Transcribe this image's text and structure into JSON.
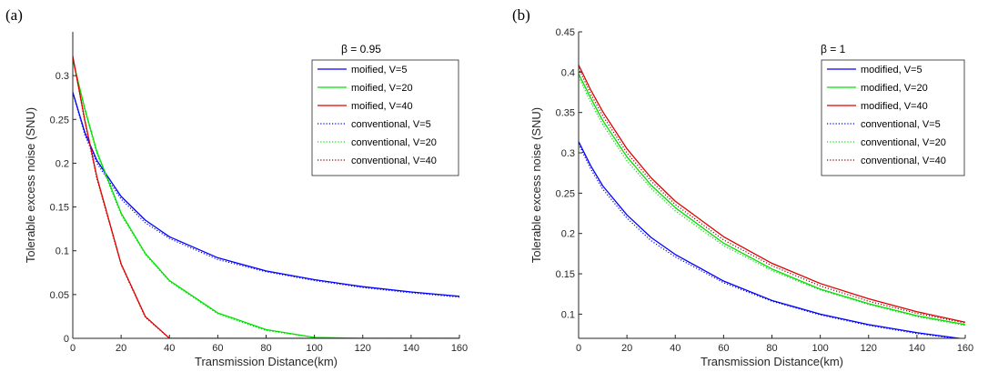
{
  "chart_data": [
    {
      "type": "line",
      "panel_label": "(a)",
      "annotation": "β = 0.95",
      "xlabel": "Transmission Distance(km)",
      "ylabel": "Tolerable excess noise (SNU)",
      "xlim": [
        0,
        160
      ],
      "ylim": [
        0,
        0.35
      ],
      "xticks": [
        0,
        20,
        40,
        60,
        80,
        100,
        120,
        140,
        160
      ],
      "yticks": [
        0,
        0.05,
        0.1,
        0.15,
        0.2,
        0.25,
        0.3
      ],
      "x": [
        0,
        5,
        10,
        20,
        30,
        40,
        60,
        80,
        100,
        120,
        140,
        160
      ],
      "legend_position": "top-right",
      "series": [
        {
          "name": "moified, V=5",
          "color": "#0000ff",
          "style": "solid",
          "values": [
            0.281,
            0.235,
            0.203,
            0.162,
            0.135,
            0.116,
            0.092,
            0.077,
            0.067,
            0.059,
            0.053,
            0.048
          ]
        },
        {
          "name": "moified, V=20",
          "color": "#00e000",
          "style": "solid",
          "values": [
            0.318,
            0.262,
            0.213,
            0.143,
            0.097,
            0.066,
            0.029,
            0.01,
            0.001,
            0,
            0,
            0
          ]
        },
        {
          "name": "moified, V=40",
          "color": "#e00000",
          "style": "solid",
          "values": [
            0.322,
            0.249,
            0.184,
            0.085,
            0.025,
            0,
            0,
            0,
            0,
            0,
            0,
            0
          ]
        },
        {
          "name": "conventional, V=5",
          "color": "#0000ff",
          "style": "dotted",
          "values": [
            0.281,
            0.232,
            0.2,
            0.159,
            0.132,
            0.114,
            0.09,
            0.076,
            0.066,
            0.058,
            0.052,
            0.047
          ]
        },
        {
          "name": "conventional, V=20",
          "color": "#00e000",
          "style": "dotted",
          "values": [
            0.318,
            0.26,
            0.211,
            0.141,
            0.096,
            0.065,
            0.028,
            0.009,
            0.001,
            0,
            0,
            0
          ]
        },
        {
          "name": "conventional, V=40",
          "color": "#8b0000",
          "style": "dotted",
          "values": [
            0.322,
            0.247,
            0.182,
            0.084,
            0.024,
            0,
            0,
            0,
            0,
            0,
            0,
            0
          ]
        }
      ]
    },
    {
      "type": "line",
      "panel_label": "(b)",
      "annotation": "β = 1",
      "xlabel": "Transmission Distance(km)",
      "ylabel": "Tolerable excess noise (SNU)",
      "xlim": [
        0,
        160
      ],
      "ylim": [
        0.07,
        0.45
      ],
      "xticks": [
        0,
        20,
        40,
        60,
        80,
        100,
        120,
        140,
        160
      ],
      "yticks": [
        0.1,
        0.15,
        0.2,
        0.25,
        0.3,
        0.35,
        0.4,
        0.45
      ],
      "x": [
        0,
        5,
        10,
        20,
        30,
        40,
        60,
        80,
        100,
        120,
        140,
        160
      ],
      "legend_position": "top-right",
      "series": [
        {
          "name": "modified, V=5",
          "color": "#0000ff",
          "style": "solid",
          "values": [
            0.314,
            0.284,
            0.259,
            0.223,
            0.195,
            0.174,
            0.141,
            0.117,
            0.1,
            0.087,
            0.077,
            0.069
          ]
        },
        {
          "name": "modified, V=20",
          "color": "#00e000",
          "style": "solid",
          "values": [
            0.398,
            0.368,
            0.34,
            0.295,
            0.26,
            0.232,
            0.188,
            0.156,
            0.131,
            0.113,
            0.098,
            0.087
          ]
        },
        {
          "name": "modified, V=40",
          "color": "#e00000",
          "style": "solid",
          "values": [
            0.409,
            0.378,
            0.351,
            0.305,
            0.269,
            0.24,
            0.196,
            0.163,
            0.138,
            0.119,
            0.103,
            0.09
          ]
        },
        {
          "name": "conventional, V=5",
          "color": "#0000ff",
          "style": "dotted",
          "values": [
            0.311,
            0.28,
            0.255,
            0.219,
            0.191,
            0.171,
            0.139,
            0.116,
            0.099,
            0.086,
            0.076,
            0.068
          ]
        },
        {
          "name": "conventional, V=20",
          "color": "#00e000",
          "style": "dotted",
          "values": [
            0.394,
            0.363,
            0.335,
            0.29,
            0.256,
            0.228,
            0.185,
            0.154,
            0.13,
            0.112,
            0.097,
            0.086
          ]
        },
        {
          "name": "conventional, V=40",
          "color": "#8b0000",
          "style": "dotted",
          "values": [
            0.405,
            0.373,
            0.346,
            0.3,
            0.265,
            0.236,
            0.192,
            0.16,
            0.135,
            0.116,
            0.101,
            0.089
          ]
        }
      ]
    }
  ]
}
